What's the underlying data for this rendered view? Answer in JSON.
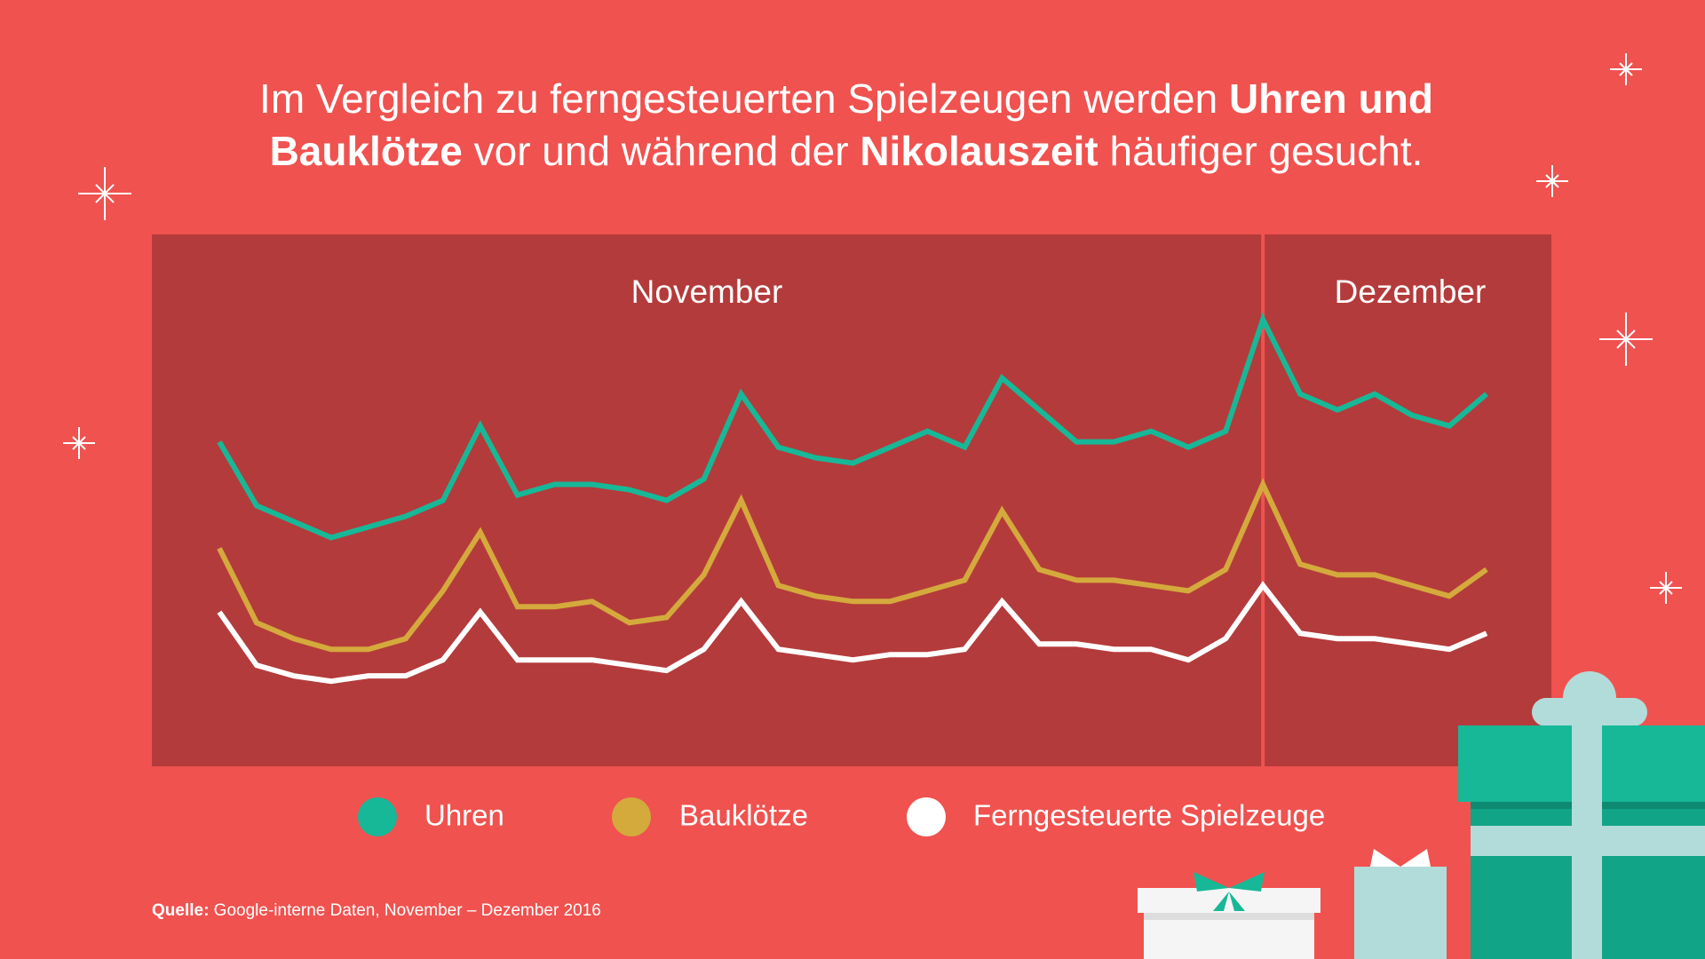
{
  "title": [
    "Im Vergleich zu ferngesteuerten Spielzeugen werden ",
    "Uhren und",
    "Bauklötze",
    " vor und während der ",
    "Nikolauszeit",
    " häufiger gesucht."
  ],
  "source": [
    "Quelle:",
    " Google-interne Daten, November – Dezember 2016"
  ],
  "chart_data": {
    "type": "line",
    "periods": [
      "November",
      "Dezember"
    ],
    "categories": [
      null,
      null,
      null,
      null,
      null,
      null,
      null,
      null,
      null,
      null,
      null,
      null,
      null,
      null,
      null,
      null,
      null,
      null,
      null,
      null,
      null,
      null,
      null,
      null,
      null,
      null,
      null,
      null,
      null,
      null,
      null,
      null,
      null,
      null,
      null
    ],
    "ylim": [
      0,
      100
    ],
    "series": [
      {
        "name": "Uhren",
        "color": "#17b897",
        "values": [
          61,
          49,
          46,
          43,
          45,
          47,
          50,
          64,
          51,
          53,
          53,
          52,
          50,
          54,
          70,
          60,
          58,
          57,
          60,
          63,
          60,
          73,
          67,
          61,
          61,
          63,
          60,
          63,
          84,
          70,
          67,
          70,
          66,
          64,
          70
        ]
      },
      {
        "name": "Bauklötze",
        "color": "#d4aa3c",
        "values": [
          41,
          27,
          24,
          22,
          22,
          24,
          33,
          44,
          30,
          30,
          31,
          27,
          28,
          36,
          50,
          34,
          32,
          31,
          31,
          33,
          35,
          48,
          37,
          35,
          35,
          34,
          33,
          37,
          53,
          38,
          36,
          36,
          34,
          32,
          37
        ]
      },
      {
        "name": "Ferngesteuerte Spielzeuge",
        "color": "#ffffff",
        "values": [
          29,
          19,
          17,
          16,
          17,
          17,
          20,
          29,
          20,
          20,
          20,
          19,
          18,
          22,
          31,
          22,
          21,
          20,
          21,
          21,
          22,
          31,
          23,
          23,
          22,
          22,
          20,
          24,
          34,
          25,
          24,
          24,
          23,
          22,
          25
        ]
      }
    ]
  }
}
